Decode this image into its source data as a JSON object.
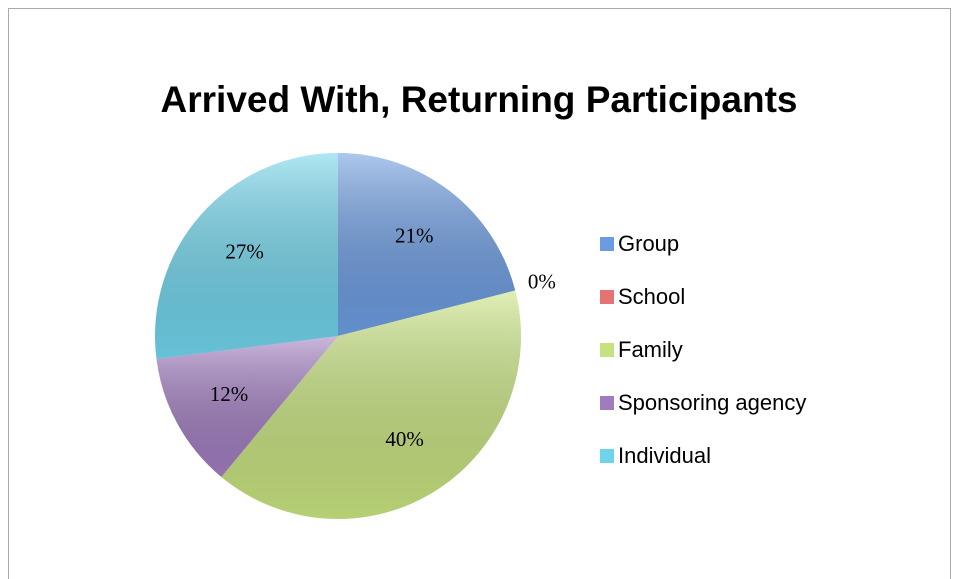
{
  "chart_data": {
    "type": "pie",
    "title": "Arrived With, Returning Participants",
    "categories": [
      "Group",
      "School",
      "Family",
      "Sponsoring agency",
      "Individual"
    ],
    "values": [
      21,
      0,
      40,
      12,
      27
    ],
    "value_labels": [
      "21%",
      "0%",
      "40%",
      "12%",
      "27%"
    ],
    "colors": [
      "#6b9be0",
      "#e57373",
      "#c6e27e",
      "#a07cbf",
      "#6fd3ea"
    ],
    "legend": "right"
  }
}
